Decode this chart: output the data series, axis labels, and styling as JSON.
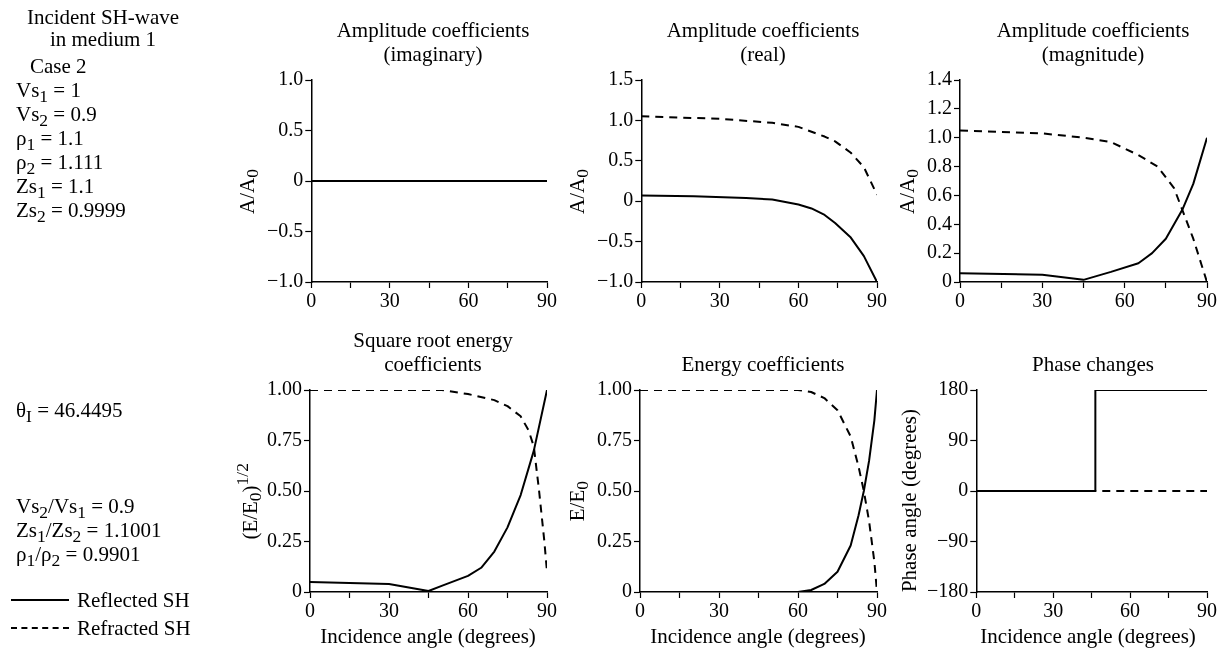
{
  "chart_data": [
    {
      "type": "other",
      "title": "Incident SH-wave\nin medium 1",
      "annotations": [
        "Case 2",
        "Vs$_{1}$ = 1",
        "Vs$_{2}$ = 0.9",
        "ρ$_{1}$ = 1.1",
        "ρ$_{2}$ = 1.111",
        "Zs$_{1}$ = 1.1",
        "Zs$_{2}$ = 0.9999",
        "θ$_{I}$ = 46.4495",
        "Vs$_{2}$/Vs$_{1}$ = 0.9",
        "Zs$_{1}$/Zs$_{2}$ = 1.1001",
        "ρ$_{1}$/ρ$_{2}$ = 0.9901"
      ]
    },
    {
      "type": "line",
      "title": "Amplitude coefficients\n(imaginary)",
      "ylabel": "A/A$_{0}$",
      "xlim": [
        0,
        90
      ],
      "ylim": [
        -1,
        1
      ],
      "xticks": [
        0,
        {
          "value": 15,
          "label": null
        },
        30,
        {
          "value": 45,
          "label": null
        },
        60,
        {
          "value": 75,
          "label": null
        },
        90
      ],
      "yticks": [
        {
          "value": -1,
          "label": "−1.0"
        },
        {
          "value": -0.5,
          "label": "−0.5"
        },
        0,
        0.5,
        {
          "value": 1,
          "label": "1.0"
        }
      ],
      "series": [
        {
          "color": "#000000",
          "line_style": "solid",
          "x": [
            0,
            30,
            60,
            90
          ],
          "values": [
            0,
            0,
            0,
            0
          ]
        }
      ]
    },
    {
      "type": "line",
      "title": "Amplitude coefficients\n(real)",
      "ylabel": "A/A$_{0}$",
      "xlim": [
        0,
        90
      ],
      "ylim": [
        -1,
        1.5
      ],
      "xticks": [
        0,
        {
          "value": 15,
          "label": null
        },
        30,
        {
          "value": 45,
          "label": null
        },
        60,
        {
          "value": 75,
          "label": null
        },
        90
      ],
      "yticks": [
        {
          "value": -1,
          "label": "−1.0"
        },
        {
          "value": -0.5,
          "label": "−0.5"
        },
        0,
        0.5,
        {
          "value": 1,
          "label": "1.0"
        },
        1.5
      ],
      "series": [
        {
          "color": "#000000",
          "line_style": "solid",
          "x": [
            0,
            20,
            40,
            50,
            60,
            65,
            70,
            74,
            80,
            85,
            90
          ],
          "values": [
            0.07,
            0.06,
            0.04,
            0.02,
            -0.04,
            -0.09,
            -0.17,
            -0.27,
            -0.45,
            -0.68,
            -1.0
          ]
        },
        {
          "color": "#000000",
          "line_style": "dashed",
          "x": [
            0,
            30,
            50,
            60,
            70,
            74,
            80,
            85,
            90
          ],
          "values": [
            1.05,
            1.02,
            0.97,
            0.92,
            0.8,
            0.74,
            0.6,
            0.42,
            0.08
          ]
        }
      ]
    },
    {
      "type": "line",
      "title": "Amplitude coefficients\n(magnitude)",
      "ylabel": "A/A$_{0}$",
      "xlim": [
        0,
        90
      ],
      "ylim": [
        0,
        1.4
      ],
      "xticks": [
        0,
        {
          "value": 15,
          "label": null
        },
        30,
        {
          "value": 45,
          "label": null
        },
        60,
        {
          "value": 75,
          "label": null
        },
        90
      ],
      "yticks": [
        0,
        0.2,
        0.4,
        0.6,
        0.8,
        {
          "value": 1,
          "label": "1.0"
        },
        1.2,
        1.4
      ],
      "series": [
        {
          "color": "#000000",
          "line_style": "solid",
          "x": [
            0,
            30,
            45,
            55,
            65,
            70,
            75,
            81,
            85,
            90
          ],
          "values": [
            0.06,
            0.05,
            0.015,
            0.07,
            0.13,
            0.2,
            0.3,
            0.5,
            0.68,
            1.0
          ]
        },
        {
          "color": "#000000",
          "line_style": "dashed",
          "x": [
            0,
            30,
            45,
            55,
            65,
            72,
            78,
            81,
            85,
            88,
            90
          ],
          "values": [
            1.05,
            1.03,
            1.0,
            0.97,
            0.88,
            0.8,
            0.65,
            0.5,
            0.3,
            0.12,
            0.0
          ]
        }
      ]
    },
    {
      "type": "line",
      "title": "Square root energy\ncoefficients",
      "xlabel": "Incidence angle (degrees)",
      "ylabel": "(E/E$_{0}$)$^{1/2}$",
      "legend": "left",
      "xlim": [
        0,
        90
      ],
      "ylim": [
        0,
        1
      ],
      "xticks": [
        0,
        {
          "value": 15,
          "label": null
        },
        30,
        {
          "value": 45,
          "label": null
        },
        60,
        {
          "value": 75,
          "label": null
        },
        90
      ],
      "yticks": [
        0,
        {
          "value": 0.25,
          "label": "0.25"
        },
        {
          "value": 0.5,
          "label": "0.50"
        },
        {
          "value": 0.75,
          "label": "0.75"
        },
        {
          "value": 1,
          "label": "1.00"
        }
      ],
      "series": [
        {
          "name": "Reflected SH",
          "color": "#000000",
          "line_style": "solid",
          "x": [
            0,
            30,
            45,
            50,
            60,
            65,
            70,
            75,
            80,
            85,
            90
          ],
          "values": [
            0.05,
            0.04,
            0.005,
            0.03,
            0.08,
            0.12,
            0.2,
            0.32,
            0.48,
            0.7,
            1.0
          ]
        },
        {
          "name": "Refracted SH",
          "color": "#000000",
          "line_style": "dashed",
          "x": [
            0,
            50,
            60,
            70,
            75,
            80,
            83,
            85,
            87,
            89,
            90
          ],
          "values": [
            1.0,
            1.0,
            0.98,
            0.95,
            0.92,
            0.87,
            0.8,
            0.72,
            0.5,
            0.25,
            0.1
          ]
        }
      ]
    },
    {
      "type": "line",
      "title": "Energy coefficients",
      "xlabel": "Incidence angle (degrees)",
      "ylabel": "E/E$_{0}$",
      "xlim": [
        0,
        90
      ],
      "ylim": [
        0,
        1
      ],
      "xticks": [
        0,
        {
          "value": 15,
          "label": null
        },
        30,
        {
          "value": 45,
          "label": null
        },
        60,
        {
          "value": 75,
          "label": null
        },
        90
      ],
      "yticks": [
        0,
        {
          "value": 0.25,
          "label": "0.25"
        },
        {
          "value": 0.5,
          "label": "0.50"
        },
        {
          "value": 0.75,
          "label": "0.75"
        },
        {
          "value": 1,
          "label": "1.00"
        }
      ],
      "series": [
        {
          "color": "#000000",
          "line_style": "solid",
          "x": [
            0,
            60,
            65,
            70,
            75,
            80,
            83,
            85,
            87,
            89,
            90
          ],
          "values": [
            0,
            0,
            0.01,
            0.04,
            0.1,
            0.23,
            0.38,
            0.5,
            0.65,
            0.85,
            1.0
          ]
        },
        {
          "color": "#000000",
          "line_style": "dashed",
          "x": [
            0,
            60,
            65,
            70,
            75,
            80,
            83,
            85,
            87,
            89,
            90
          ],
          "values": [
            1,
            1,
            0.99,
            0.96,
            0.9,
            0.77,
            0.62,
            0.5,
            0.35,
            0.15,
            0.0
          ]
        }
      ]
    },
    {
      "type": "line",
      "title": "Phase changes",
      "xlabel": "Incidence angle (degrees)",
      "ylabel": "Phase angle (degrees)",
      "xlim": [
        0,
        90
      ],
      "ylim": [
        -180,
        180
      ],
      "xticks": [
        0,
        {
          "value": 15,
          "label": null
        },
        30,
        {
          "value": 45,
          "label": null
        },
        60,
        {
          "value": 75,
          "label": null
        },
        90
      ],
      "yticks": [
        {
          "value": -180,
          "label": "−180"
        },
        {
          "value": -90,
          "label": "−90"
        },
        0,
        90,
        180
      ],
      "series": [
        {
          "color": "#000000",
          "line_style": "dashed",
          "x": [
            0,
            90
          ],
          "values": [
            0,
            0
          ]
        },
        {
          "color": "#000000",
          "line_style": "solid",
          "x": [
            0,
            46.45,
            46.45,
            90
          ],
          "values": [
            0,
            0,
            180,
            180
          ]
        }
      ]
    }
  ]
}
